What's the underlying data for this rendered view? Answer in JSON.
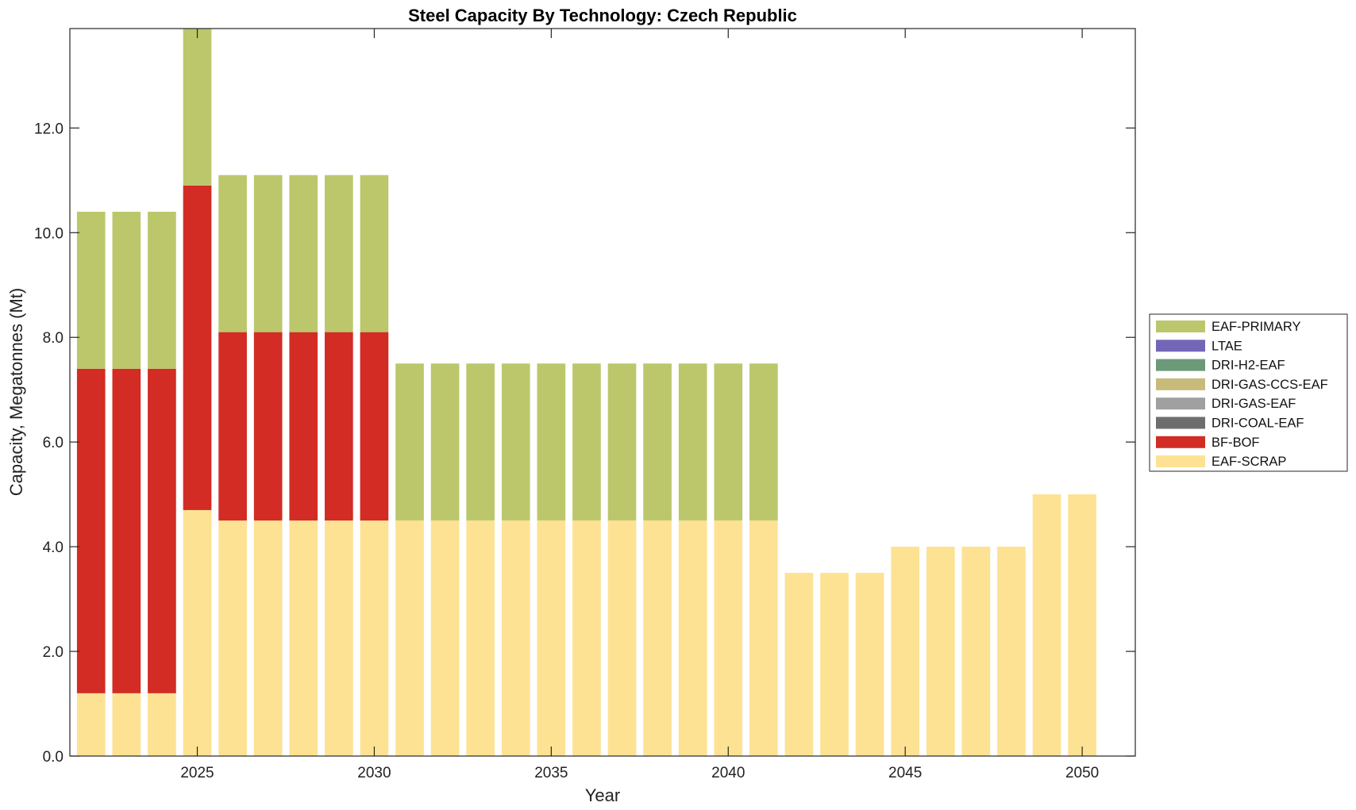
{
  "chart_data": {
    "type": "bar",
    "stacked": true,
    "title": "Steel Capacity By Technology: Czech Republic",
    "xlabel": "Year",
    "ylabel": "Capacity, Megatonnes (Mt)",
    "ylim": [
      0,
      13.9
    ],
    "yticks": [
      0,
      2,
      4,
      6,
      8,
      10,
      12
    ],
    "ytick_labels": [
      "0.0",
      "2.0",
      "4.0",
      "6.0",
      "8.0",
      "10.0",
      "12.0"
    ],
    "xlim": [
      2021.4,
      2051.5
    ],
    "xticks": [
      2025,
      2030,
      2035,
      2040,
      2045,
      2050
    ],
    "xtick_labels": [
      "2025",
      "2030",
      "2035",
      "2040",
      "2045",
      "2050"
    ],
    "x": [
      2022,
      2023,
      2024,
      2025,
      2026,
      2027,
      2028,
      2029,
      2030,
      2031,
      2032,
      2033,
      2034,
      2035,
      2036,
      2037,
      2038,
      2039,
      2040,
      2041,
      2042,
      2043,
      2044,
      2045,
      2046,
      2047,
      2048,
      2049,
      2050
    ],
    "legend_position": "right",
    "series": [
      {
        "name": "EAF-SCRAP",
        "color": "#FDE293",
        "values": [
          1.2,
          1.2,
          1.2,
          4.7,
          4.5,
          4.5,
          4.5,
          4.5,
          4.5,
          4.5,
          4.5,
          4.5,
          4.5,
          4.5,
          4.5,
          4.5,
          4.5,
          4.5,
          4.5,
          4.5,
          3.5,
          3.5,
          3.5,
          4.0,
          4.0,
          4.0,
          4.0,
          5.0,
          5.0
        ]
      },
      {
        "name": "BF-BOF",
        "color": "#D22C25",
        "values": [
          6.2,
          6.2,
          6.2,
          6.2,
          3.6,
          3.6,
          3.6,
          3.6,
          3.6,
          0,
          0,
          0,
          0,
          0,
          0,
          0,
          0,
          0,
          0,
          0,
          0,
          0,
          0,
          0,
          0,
          0,
          0,
          0,
          0
        ]
      },
      {
        "name": "DRI-COAL-EAF",
        "color": "#6E6E6E",
        "values": [
          0,
          0,
          0,
          0,
          0,
          0,
          0,
          0,
          0,
          0,
          0,
          0,
          0,
          0,
          0,
          0,
          0,
          0,
          0,
          0,
          0,
          0,
          0,
          0,
          0,
          0,
          0,
          0,
          0
        ]
      },
      {
        "name": "DRI-GAS-EAF",
        "color": "#A0A0A0",
        "values": [
          0,
          0,
          0,
          0,
          0,
          0,
          0,
          0,
          0,
          0,
          0,
          0,
          0,
          0,
          0,
          0,
          0,
          0,
          0,
          0,
          0,
          0,
          0,
          0,
          0,
          0,
          0,
          0,
          0
        ]
      },
      {
        "name": "DRI-GAS-CCS-EAF",
        "color": "#C7BB7B",
        "values": [
          0,
          0,
          0,
          0,
          0,
          0,
          0,
          0,
          0,
          0,
          0,
          0,
          0,
          0,
          0,
          0,
          0,
          0,
          0,
          0,
          0,
          0,
          0,
          0,
          0,
          0,
          0,
          0,
          0
        ]
      },
      {
        "name": "DRI-H2-EAF",
        "color": "#6C9A78",
        "values": [
          0,
          0,
          0,
          0,
          0,
          0,
          0,
          0,
          0,
          0,
          0,
          0,
          0,
          0,
          0,
          0,
          0,
          0,
          0,
          0,
          0,
          0,
          0,
          0,
          0,
          0,
          0,
          0,
          0
        ]
      },
      {
        "name": "LTAE",
        "color": "#7466B7",
        "values": [
          0,
          0,
          0,
          0,
          0,
          0,
          0,
          0,
          0,
          0,
          0,
          0,
          0,
          0,
          0,
          0,
          0,
          0,
          0,
          0,
          0,
          0,
          0,
          0,
          0,
          0,
          0,
          0,
          0
        ]
      },
      {
        "name": "EAF-PRIMARY",
        "color": "#BCC76C",
        "values": [
          3.0,
          3.0,
          3.0,
          3.0,
          3.0,
          3.0,
          3.0,
          3.0,
          3.0,
          3.0,
          3.0,
          3.0,
          3.0,
          3.0,
          3.0,
          3.0,
          3.0,
          3.0,
          3.0,
          3.0,
          0,
          0,
          0,
          0,
          0,
          0,
          0,
          0,
          0
        ]
      }
    ],
    "legend_order": [
      "EAF-PRIMARY",
      "LTAE",
      "DRI-H2-EAF",
      "DRI-GAS-CCS-EAF",
      "DRI-GAS-EAF",
      "DRI-COAL-EAF",
      "BF-BOF",
      "EAF-SCRAP"
    ]
  }
}
